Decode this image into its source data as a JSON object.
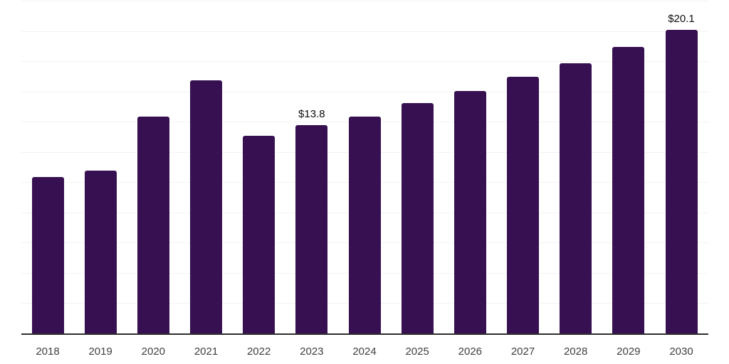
{
  "chart_data": {
    "type": "bar",
    "title": "",
    "xlabel": "",
    "ylabel": "",
    "categories": [
      "2018",
      "2019",
      "2020",
      "2021",
      "2022",
      "2023",
      "2024",
      "2025",
      "2026",
      "2027",
      "2028",
      "2029",
      "2030"
    ],
    "values": [
      10.4,
      10.8,
      14.4,
      16.8,
      13.1,
      13.8,
      14.4,
      15.3,
      16.1,
      17.0,
      17.9,
      19.0,
      20.1
    ],
    "annotations": [
      {
        "index": 5,
        "category": "2023",
        "text": "$13.8"
      },
      {
        "index": 12,
        "category": "2030",
        "text": "$20.1"
      }
    ],
    "ylim": [
      0,
      22
    ],
    "grid": {
      "visible": true,
      "step": 2,
      "orientation": "horizontal"
    },
    "legend": {
      "visible": false
    },
    "colors": {
      "bar": "#361051",
      "gridline": "#f3f3f3",
      "axis_line": "#2e2e2e",
      "annotation_text": "#0d0d0d",
      "tick_text": "#404040",
      "background": "#ffffff"
    }
  }
}
